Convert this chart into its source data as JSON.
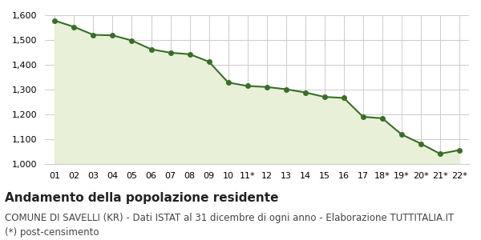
{
  "x_labels": [
    "01",
    "02",
    "03",
    "04",
    "05",
    "06",
    "07",
    "08",
    "09",
    "10",
    "11*",
    "12",
    "13",
    "14",
    "15",
    "16",
    "17",
    "18*",
    "19*",
    "20*",
    "21*",
    "22*"
  ],
  "values": [
    1578,
    1553,
    1521,
    1519,
    1498,
    1463,
    1449,
    1443,
    1413,
    1329,
    1315,
    1311,
    1302,
    1289,
    1271,
    1267,
    1191,
    1185,
    1120,
    1083,
    1042,
    1057
  ],
  "line_color": "#3a6e28",
  "fill_color": "#e8f0d8",
  "marker_color": "#3a6e28",
  "bg_color": "#ffffff",
  "grid_color": "#cccccc",
  "ylim_min": 1000,
  "ylim_max": 1600,
  "yticks": [
    1000,
    1100,
    1200,
    1300,
    1400,
    1500,
    1600
  ],
  "title": "Andamento della popolazione residente",
  "subtitle": "COMUNE DI SAVELLI (KR) - Dati ISTAT al 31 dicembre di ogni anno - Elaborazione TUTTITALIA.IT",
  "footnote": "(*) post-censimento",
  "title_fontsize": 11,
  "subtitle_fontsize": 8.5,
  "footnote_fontsize": 8.5
}
